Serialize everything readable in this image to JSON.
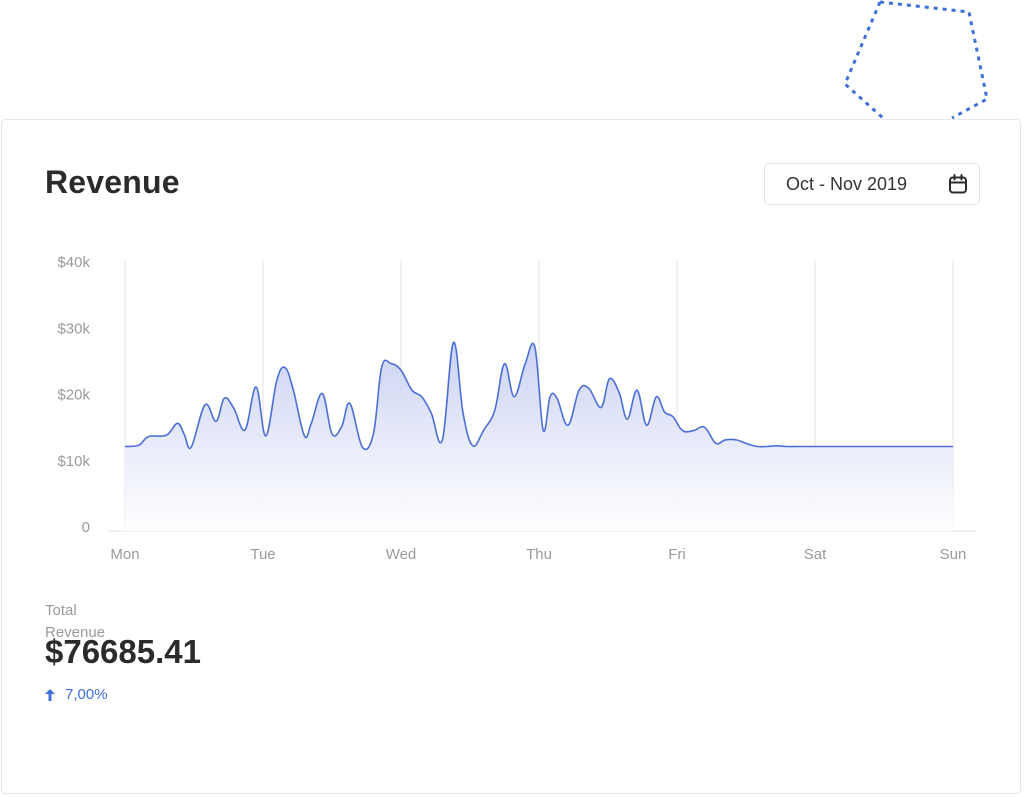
{
  "card": {
    "title": "Revenue",
    "date_range": "Oct - Nov 2019"
  },
  "summary": {
    "label": "Total Revenue",
    "value": "$76685.41",
    "change": "7,00%"
  },
  "icons": {
    "date_picker": "calendar-icon",
    "change": "arrow-up-icon"
  },
  "colors": {
    "accent": "#3f6fd8",
    "line": "#4b6fd6",
    "fill_top": "#c9d0f2",
    "grid": "#e4e4e8",
    "tick_text": "#9a9a9a"
  },
  "chart_data": {
    "type": "area",
    "x_ticks": [
      "Mon",
      "Tue",
      "Wed",
      "Thu",
      "Fri",
      "Sat",
      "Sun"
    ],
    "y_ticks": [
      "0",
      "$10k",
      "$20k",
      "$30k",
      "$40k"
    ],
    "ylim": [
      0,
      40000
    ],
    "xlim": [
      0,
      6
    ],
    "grid": {
      "vertical": true,
      "horizontal": false
    },
    "legend": "none",
    "series": [
      {
        "x": [
          0,
          0.1,
          0.17,
          0.3,
          0.38,
          0.43,
          0.48,
          0.58,
          0.66,
          0.72,
          0.79,
          0.87,
          0.95,
          1.02,
          1.1,
          1.16,
          1.22,
          1.3,
          1.35,
          1.43,
          1.5,
          1.57,
          1.63,
          1.72,
          1.8,
          1.86,
          1.93,
          2.0,
          2.08,
          2.15,
          2.22,
          2.3,
          2.38,
          2.45,
          2.52,
          2.6,
          2.68,
          2.75,
          2.82,
          2.9,
          2.97,
          3.03,
          3.08,
          3.13,
          3.21,
          3.29,
          3.36,
          3.45,
          3.51,
          3.58,
          3.64,
          3.71,
          3.78,
          3.85,
          3.91,
          3.97,
          4.04,
          4.12,
          4.2,
          4.28,
          4.35,
          4.43,
          4.51,
          4.58,
          4.65,
          4.72,
          4.8,
          4.86,
          4.92,
          5.0,
          5.07,
          5.13,
          5.21,
          5.28,
          5.35,
          5.45,
          5.53,
          5.6,
          5.67,
          5.75,
          5.85,
          5.93,
          6.0
        ],
        "values": [
          12000,
          12200,
          13500,
          13700,
          15500,
          13800,
          11900,
          18300,
          15800,
          19300,
          17700,
          14500,
          21000,
          13600,
          22000,
          23900,
          20500,
          13600,
          15500,
          20000,
          13900,
          15000,
          18500,
          11900,
          13900,
          24000,
          24500,
          23500,
          20500,
          19500,
          17000,
          13000,
          27700,
          17000,
          12100,
          14500,
          17500,
          24500,
          19500,
          24500,
          27000,
          14500,
          19500,
          19300,
          15200,
          20500,
          20800,
          17900,
          22200,
          20200,
          16100,
          20500,
          15200,
          19500,
          17200,
          16500,
          14400,
          14400,
          14900,
          12500,
          13000,
          13000,
          12400,
          12000,
          12000,
          12100,
          12000,
          12000,
          12000,
          12000,
          12000,
          12000,
          12000,
          12000,
          12000,
          12000,
          12000,
          12000,
          12000,
          12000,
          12000,
          12000,
          12000
        ]
      }
    ]
  }
}
